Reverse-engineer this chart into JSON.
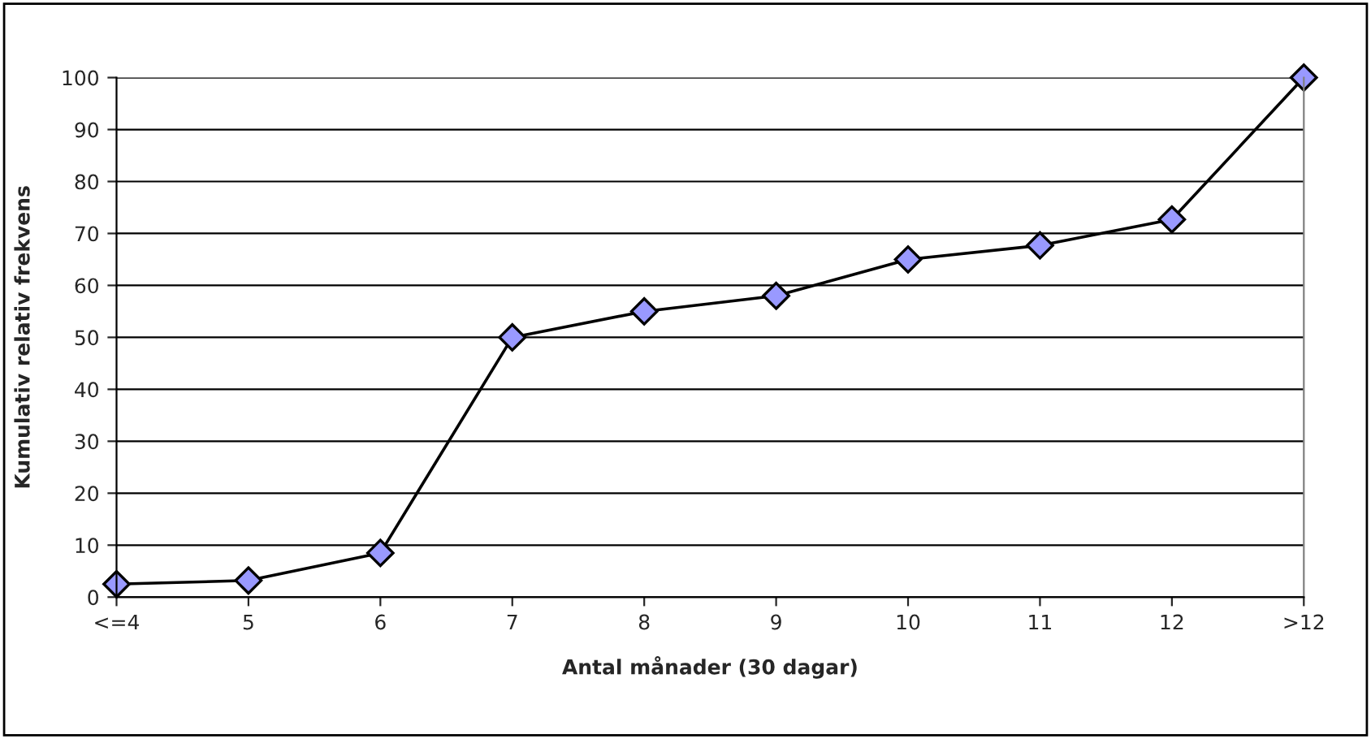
{
  "chart_data": {
    "type": "line",
    "xlabel": "Antal månader (30 dagar)",
    "ylabel": "Kumulativ relativ frekvens",
    "categories": [
      "<=4",
      "5",
      "6",
      "7",
      "8",
      "9",
      "10",
      "11",
      "12",
      ">12"
    ],
    "series": [
      {
        "color": "#9999ff",
        "values": [
          2.5,
          3.2,
          8.5,
          50,
          55,
          58,
          65,
          67.7,
          72.7,
          100
        ]
      }
    ],
    "ylim": [
      0,
      100
    ],
    "yticks": [
      0,
      10,
      20,
      30,
      40,
      50,
      60,
      70,
      80,
      90,
      100
    ],
    "grid": "y",
    "marker": "diamond",
    "line_style": "solid",
    "legend": false
  }
}
